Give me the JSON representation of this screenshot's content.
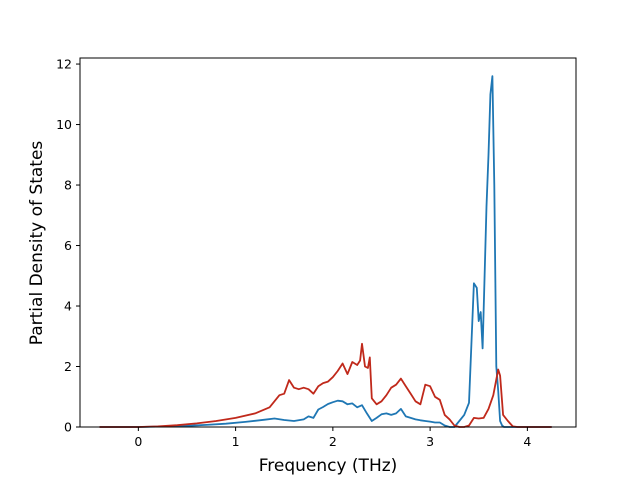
{
  "chart_data": {
    "type": "line",
    "title": "",
    "xlabel": "Frequency (THz)",
    "ylabel": "Partial Density of States",
    "xlim": [
      -0.6,
      4.5
    ],
    "ylim": [
      0,
      12.2
    ],
    "xticks": [
      0,
      1,
      2,
      3,
      4
    ],
    "xtick_labels": [
      "0",
      "1",
      "2",
      "3",
      "4"
    ],
    "yticks": [
      0,
      2,
      4,
      6,
      8,
      10,
      12
    ],
    "ytick_labels": [
      "0",
      "2",
      "4",
      "6",
      "8",
      "10",
      "12"
    ],
    "grid": false,
    "legend": null,
    "series": [
      {
        "color": "#1f77b4",
        "x": [
          -0.4,
          0.0,
          0.3,
          0.5,
          0.7,
          0.9,
          1.1,
          1.3,
          1.4,
          1.5,
          1.6,
          1.7,
          1.75,
          1.8,
          1.85,
          1.9,
          1.95,
          2.0,
          2.05,
          2.1,
          2.15,
          2.2,
          2.25,
          2.3,
          2.35,
          2.4,
          2.45,
          2.5,
          2.55,
          2.6,
          2.65,
          2.7,
          2.75,
          2.8,
          2.85,
          2.9,
          2.95,
          3.0,
          3.05,
          3.1,
          3.15,
          3.2,
          3.25,
          3.3,
          3.35,
          3.4,
          3.45,
          3.48,
          3.5,
          3.52,
          3.54,
          3.56,
          3.58,
          3.6,
          3.62,
          3.64,
          3.66,
          3.68,
          3.7,
          3.72,
          3.74,
          3.76,
          3.78,
          3.8,
          3.82,
          3.85,
          3.9,
          4.0,
          4.25
        ],
        "y": [
          0,
          0,
          0.02,
          0.04,
          0.07,
          0.11,
          0.17,
          0.24,
          0.28,
          0.23,
          0.2,
          0.25,
          0.35,
          0.3,
          0.58,
          0.66,
          0.76,
          0.82,
          0.87,
          0.85,
          0.75,
          0.78,
          0.65,
          0.72,
          0.45,
          0.2,
          0.3,
          0.42,
          0.45,
          0.4,
          0.45,
          0.6,
          0.35,
          0.3,
          0.25,
          0.22,
          0.2,
          0.18,
          0.15,
          0.15,
          0.05,
          0.0,
          0.0,
          0.2,
          0.4,
          0.8,
          4.75,
          4.6,
          3.5,
          3.8,
          2.6,
          5.0,
          7.3,
          9.0,
          11.0,
          11.6,
          8.0,
          2.0,
          1.2,
          0.2,
          0.05,
          0,
          0,
          0,
          0,
          0,
          0,
          0,
          0
        ]
      },
      {
        "color": "#c0291b",
        "x": [
          -0.4,
          0.0,
          0.2,
          0.4,
          0.6,
          0.8,
          1.0,
          1.2,
          1.35,
          1.45,
          1.5,
          1.55,
          1.6,
          1.65,
          1.7,
          1.75,
          1.8,
          1.85,
          1.9,
          1.95,
          2.0,
          2.05,
          2.1,
          2.15,
          2.2,
          2.25,
          2.28,
          2.3,
          2.33,
          2.36,
          2.38,
          2.4,
          2.45,
          2.5,
          2.55,
          2.6,
          2.65,
          2.7,
          2.75,
          2.8,
          2.85,
          2.9,
          2.95,
          3.0,
          3.05,
          3.1,
          3.15,
          3.2,
          3.25,
          3.3,
          3.35,
          3.4,
          3.45,
          3.5,
          3.55,
          3.6,
          3.65,
          3.7,
          3.72,
          3.75,
          3.8,
          3.85,
          3.9,
          4.0,
          4.25
        ],
        "y": [
          0,
          0,
          0.02,
          0.06,
          0.12,
          0.2,
          0.3,
          0.45,
          0.65,
          1.05,
          1.1,
          1.55,
          1.3,
          1.25,
          1.3,
          1.25,
          1.1,
          1.35,
          1.45,
          1.5,
          1.65,
          1.85,
          2.1,
          1.75,
          2.15,
          2.05,
          2.2,
          2.75,
          2.0,
          1.95,
          2.3,
          0.95,
          0.75,
          0.85,
          1.05,
          1.3,
          1.4,
          1.6,
          1.35,
          1.1,
          0.85,
          0.75,
          1.4,
          1.35,
          1.0,
          0.9,
          0.4,
          0.25,
          0.05,
          0.0,
          0.0,
          0.05,
          0.3,
          0.28,
          0.3,
          0.6,
          1.05,
          1.9,
          1.7,
          0.4,
          0.2,
          0.02,
          0,
          0,
          0
        ]
      }
    ]
  }
}
